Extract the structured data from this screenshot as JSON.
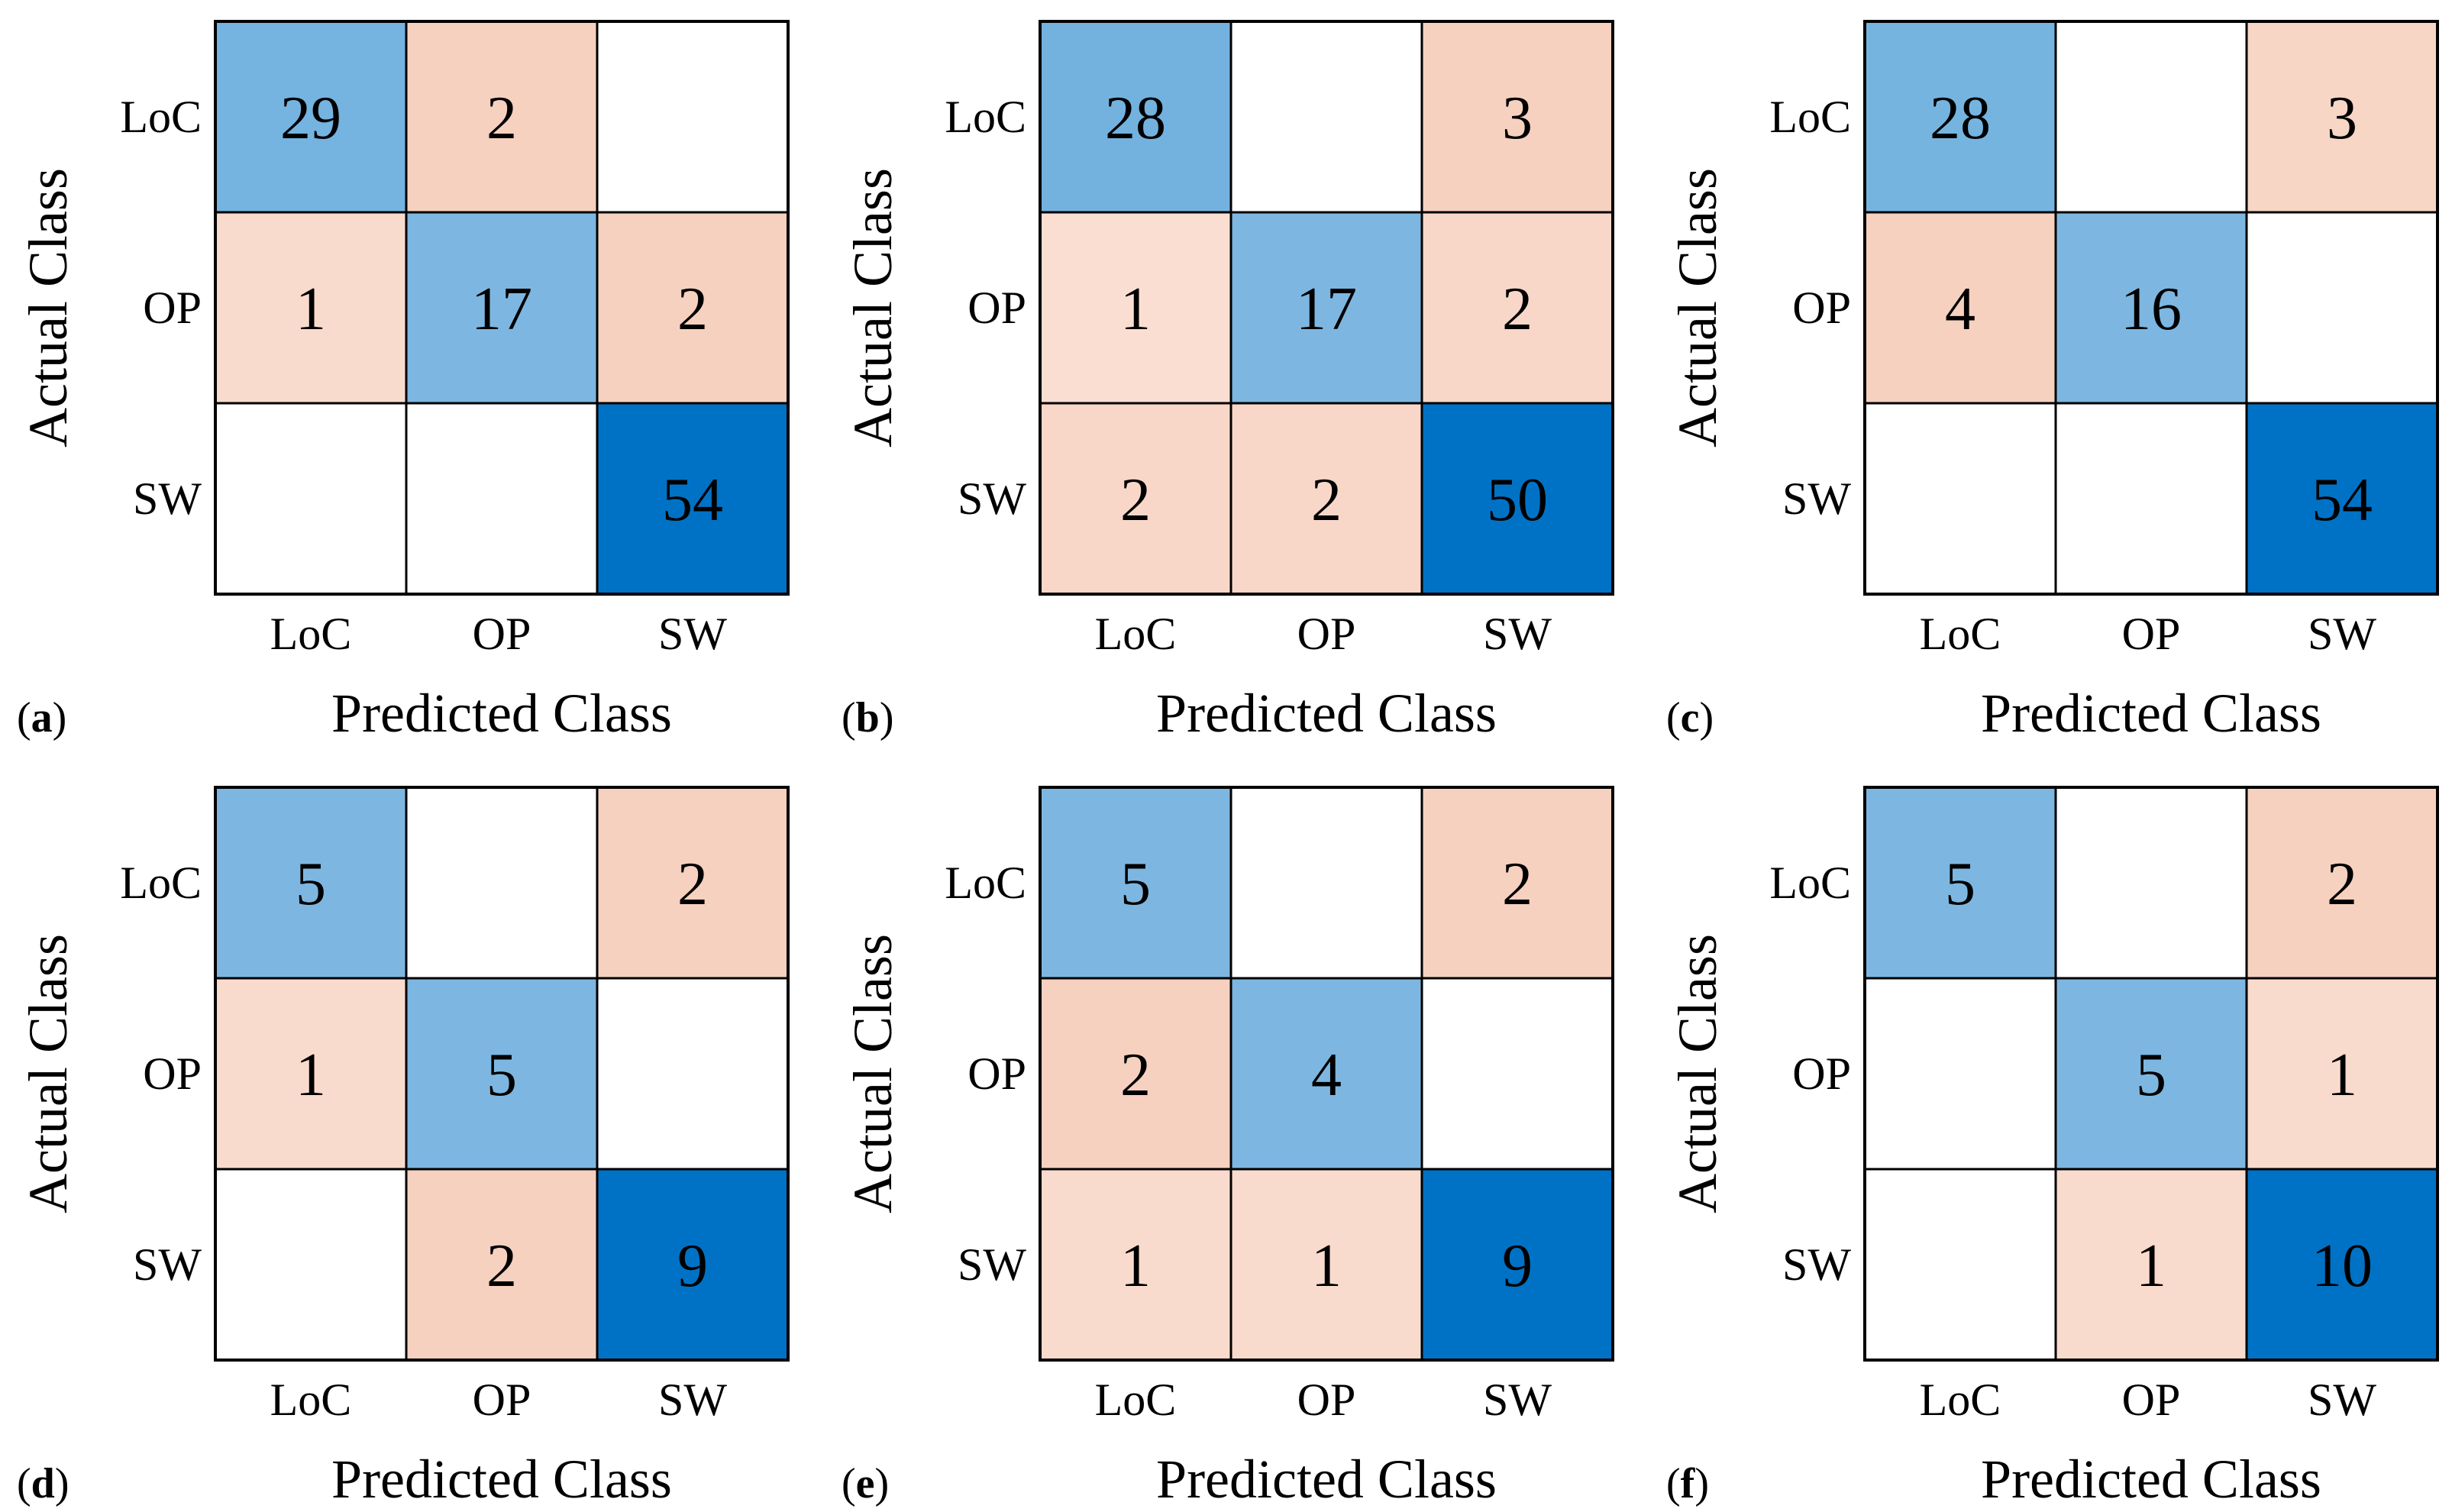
{
  "chart_data": [
    {
      "type": "heatmap",
      "panel_label": "a",
      "ylabel": "Actual Class",
      "xlabel": "Predicted Class",
      "row_labels": [
        "LoC",
        "OP",
        "SW"
      ],
      "col_labels": [
        "LoC",
        "OP",
        "SW"
      ],
      "matrix": [
        [
          29,
          2,
          null
        ],
        [
          1,
          17,
          2
        ],
        [
          null,
          null,
          54
        ]
      ]
    },
    {
      "type": "heatmap",
      "panel_label": "b",
      "ylabel": "Actual Class",
      "xlabel": "Predicted Class",
      "row_labels": [
        "LoC",
        "OP",
        "SW"
      ],
      "col_labels": [
        "LoC",
        "OP",
        "SW"
      ],
      "matrix": [
        [
          28,
          null,
          3
        ],
        [
          1,
          17,
          2
        ],
        [
          2,
          2,
          50
        ]
      ]
    },
    {
      "type": "heatmap",
      "panel_label": "c",
      "ylabel": "Actual Class",
      "xlabel": "Predicted Class",
      "row_labels": [
        "LoC",
        "OP",
        "SW"
      ],
      "col_labels": [
        "LoC",
        "OP",
        "SW"
      ],
      "matrix": [
        [
          28,
          null,
          3
        ],
        [
          4,
          16,
          null
        ],
        [
          null,
          null,
          54
        ]
      ]
    },
    {
      "type": "heatmap",
      "panel_label": "d",
      "ylabel": "Actual Class",
      "xlabel": "Predicted Class",
      "row_labels": [
        "LoC",
        "OP",
        "SW"
      ],
      "col_labels": [
        "LoC",
        "OP",
        "SW"
      ],
      "matrix": [
        [
          5,
          null,
          2
        ],
        [
          1,
          5,
          null
        ],
        [
          null,
          2,
          9
        ]
      ]
    },
    {
      "type": "heatmap",
      "panel_label": "e",
      "ylabel": "Actual Class",
      "xlabel": "Predicted Class",
      "row_labels": [
        "LoC",
        "OP",
        "SW"
      ],
      "col_labels": [
        "LoC",
        "OP",
        "SW"
      ],
      "matrix": [
        [
          5,
          null,
          2
        ],
        [
          2,
          4,
          null
        ],
        [
          1,
          1,
          9
        ]
      ]
    },
    {
      "type": "heatmap",
      "panel_label": "f",
      "ylabel": "Actual Class",
      "xlabel": "Predicted Class",
      "row_labels": [
        "LoC",
        "OP",
        "SW"
      ],
      "col_labels": [
        "LoC",
        "OP",
        "SW"
      ],
      "matrix": [
        [
          5,
          null,
          2
        ],
        [
          null,
          5,
          1
        ],
        [
          null,
          1,
          10
        ]
      ]
    }
  ],
  "colors": {
    "diagonal_max": "#0072C6",
    "diagonal_min": "#ADD2EC",
    "offdiag_max": "#F0BFA7",
    "offdiag_min": "#FADFD3",
    "empty": "#FFFFFF",
    "grid_line": "#000000"
  }
}
